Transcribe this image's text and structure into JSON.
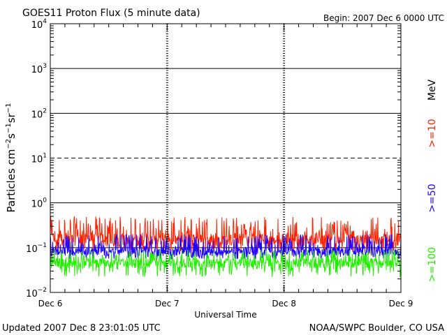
{
  "chart_data": {
    "type": "line",
    "title": "GOES11 Proton Flux (5 minute data)",
    "begin_label": "Begin: 2007 Dec 6 0000 UTC",
    "ylabel_base": "Particles cm",
    "ylabel_parts": [
      "−2",
      "s",
      "−1",
      "sr",
      "−1"
    ],
    "xlabel": "Universal Time",
    "y_scale": "log",
    "ylim": [
      0.01,
      10000
    ],
    "y_ticks": [
      {
        "base": "10",
        "exp": "−2",
        "value": 0.01
      },
      {
        "base": "10",
        "exp": "−1",
        "value": 0.1
      },
      {
        "base": "10",
        "exp": "0",
        "value": 1
      },
      {
        "base": "10",
        "exp": "1",
        "value": 10
      },
      {
        "base": "10",
        "exp": "2",
        "value": 100
      },
      {
        "base": "10",
        "exp": "3",
        "value": 1000
      },
      {
        "base": "10",
        "exp": "4",
        "value": 10000
      }
    ],
    "x_ticks": [
      "Dec 6",
      "Dec 7",
      "Dec 8",
      "Dec 9"
    ],
    "xlim_days": [
      0,
      3
    ],
    "grid": "horizontal lines at decades (10^1 dashed)",
    "energy_unit": "MeV",
    "series": [
      {
        "name": ">=10",
        "color": "#ff2200",
        "baseline": 0.15,
        "spread": [
          0.08,
          0.5
        ]
      },
      {
        "name": ">=50",
        "color": "#2200ff",
        "baseline": 0.08,
        "spread": [
          0.055,
          0.2
        ]
      },
      {
        "name": ">=100",
        "color": "#22ee00",
        "baseline": 0.045,
        "spread": [
          0.022,
          0.09
        ]
      }
    ]
  },
  "footer": {
    "updated": "Updated 2007 Dec  8 23:01:05 UTC",
    "source": "NOAA/SWPC Boulder, CO USA"
  }
}
